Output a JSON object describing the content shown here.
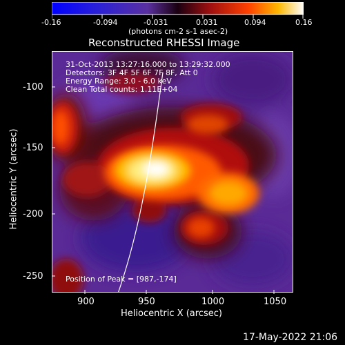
{
  "colorbar": {
    "tick_labels": [
      "-0.16",
      "-0.094",
      "-0.031",
      "0.031",
      "0.094",
      "0.16"
    ],
    "units_label": "(photons cm-2 s-1 asec-2)",
    "colors": [
      "#0000ff",
      "#2a20d8",
      "#6a3ab0",
      "#40102a",
      "#b01818",
      "#ff4000",
      "#ffb000",
      "#ffffff"
    ]
  },
  "plot": {
    "title": "Reconstructed RHESSI Image",
    "info_lines": [
      "31-Oct-2013 13:27:16.000 to 13:29:32.000",
      "Detectors: 3F 4F 5F 6F 7F 8F, Att 0",
      "Energy Range: 3.0 - 6.0 keV",
      "Clean     Total counts: 1.11E+04"
    ],
    "peak_label": "Position of Peak = [987,-174]",
    "x_axis": {
      "label": "Heliocentric X (arcsec)",
      "ticks": [
        "900",
        "950",
        "1000",
        "1050"
      ]
    },
    "y_axis": {
      "label": "Heliocentric Y (arcsec)",
      "ticks": [
        "-100",
        "-150",
        "-200",
        "-250"
      ]
    }
  },
  "footer": {
    "timestamp": "17-May-2022 21:06"
  }
}
